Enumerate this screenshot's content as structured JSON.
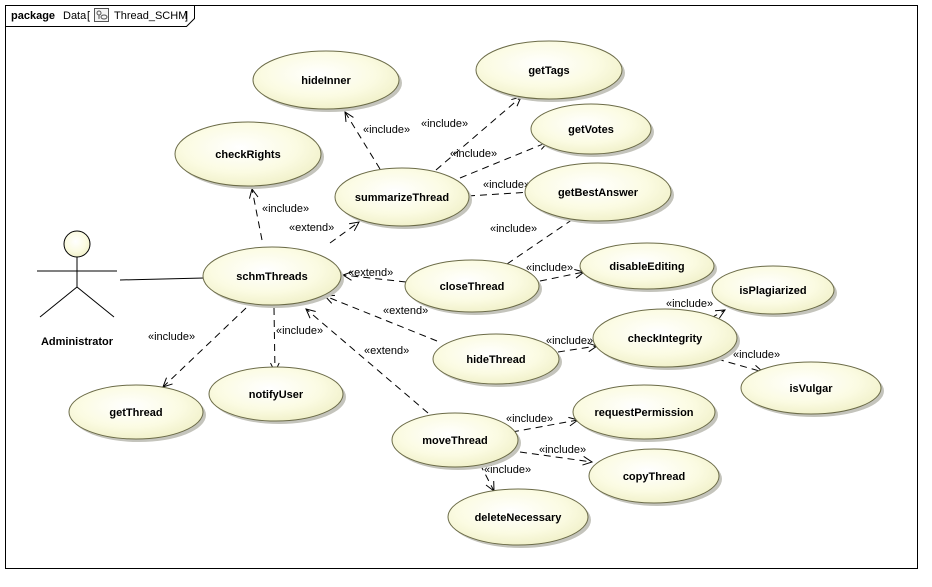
{
  "frame": {
    "keyword": "package",
    "name": "Data",
    "element": "Thread_SCHM"
  },
  "actor": {
    "name": "Administrator"
  },
  "use_cases": {
    "hideInner": "hideInner",
    "getTags": "getTags",
    "getVotes": "getVotes",
    "checkRights": "checkRights",
    "summarizeThread": "summarizeThread",
    "getBestAnswer": "getBestAnswer",
    "schmThreads": "schmThreads",
    "closeThread": "closeThread",
    "disableEditing": "disableEditing",
    "isPlagiarized": "isPlagiarized",
    "checkIntegrity": "checkIntegrity",
    "hideThread": "hideThread",
    "isVulgar": "isVulgar",
    "getThread": "getThread",
    "notifyUser": "notifyUser",
    "moveThread": "moveThread",
    "requestPermission": "requestPermission",
    "copyThread": "copyThread",
    "deleteNecessary": "deleteNecessary"
  },
  "relations": {
    "include": "«include»",
    "extend": "«extend»"
  }
}
